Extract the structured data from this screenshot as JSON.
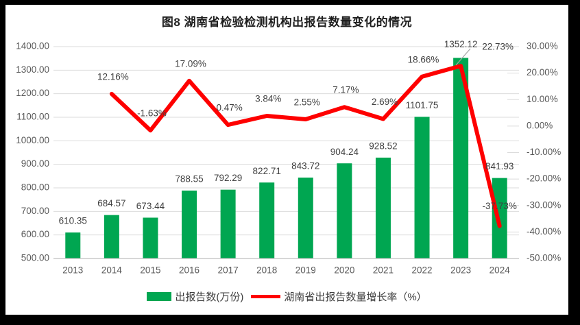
{
  "title": "图8  湖南省检验检测机构出报告数量变化的情况",
  "legend": {
    "bar_label": "出报告数(万份)",
    "line_label": "湖南省出报告数量增长率（%）"
  },
  "colors": {
    "frame_bg": "#000000",
    "panel_bg": "#ffffff",
    "bar": "#00A651",
    "line": "#FE0000",
    "grid": "#DBDBDB",
    "axis_line": "#BFBFBF",
    "tick_text": "#595959",
    "label_text": "#404040",
    "title_text": "#1f1f1f",
    "leader": "#A6A6A6"
  },
  "chart_data": {
    "type": "bar+line combo",
    "title": "图8  湖南省检验检测机构出报告数量变化的情况",
    "categories": [
      "2013",
      "2014",
      "2015",
      "2016",
      "2017",
      "2018",
      "2019",
      "2020",
      "2021",
      "2022",
      "2023",
      "2024"
    ],
    "series": [
      {
        "name": "出报告数(万份)",
        "type": "bar",
        "axis": "left",
        "color": "#00A651",
        "values": [
          610.35,
          684.57,
          673.44,
          788.55,
          792.29,
          822.71,
          843.72,
          904.24,
          928.52,
          1101.75,
          1352.12,
          841.93
        ]
      },
      {
        "name": "湖南省出报告数量增长率（%）",
        "type": "line",
        "axis": "right",
        "color": "#FE0000",
        "values": [
          null,
          12.16,
          -1.63,
          17.09,
          0.47,
          3.84,
          2.55,
          7.17,
          2.69,
          18.66,
          22.73,
          -37.73
        ]
      }
    ],
    "left_axis": {
      "min": 500,
      "max": 1400,
      "step": 100,
      "tick_format": "0.00"
    },
    "right_axis": {
      "min": -50,
      "max": 30,
      "step": 10,
      "tick_format": "0.00%"
    },
    "grid": true,
    "legend_position": "bottom",
    "layout_hints": {
      "bar_label_default_offset": [
        0,
        -16
      ],
      "bar_label_offsets": {
        "2023": [
          0,
          -19
        ]
      },
      "line_label_default_offset": [
        2,
        -24
      ],
      "line_label_offsets": {
        "2023": [
          54,
          -27
        ],
        "2024": [
          0,
          -28
        ]
      },
      "callout_leader": {
        "from": [
          657,
          88
        ],
        "to": [
          678,
          64
        ]
      }
    }
  }
}
